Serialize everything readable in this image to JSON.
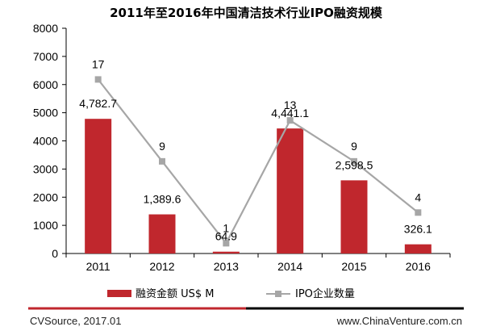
{
  "chart_data": {
    "type": "bar",
    "title": "2011年至2016年中国清洁技术行业IPO融资规模",
    "categories": [
      "2011",
      "2012",
      "2013",
      "2014",
      "2015",
      "2016"
    ],
    "ylim": [
      0,
      8000
    ],
    "yticks": [
      "0",
      "1000",
      "2000",
      "3000",
      "4000",
      "5000",
      "6000",
      "7000",
      "8000"
    ],
    "grid": false,
    "legend_position": "bottom",
    "series": [
      {
        "name": "融资金额 US$ M",
        "type": "bar",
        "color": "#c0272d",
        "values": [
          4782.7,
          1389.6,
          64.9,
          4441.1,
          2598.5,
          326.1
        ],
        "labels": [
          "4,782.7",
          "1,389.6",
          "64.9",
          "4,441.1",
          "2,598.5",
          "326.1"
        ]
      },
      {
        "name": "IPO企业数量",
        "type": "line",
        "color": "#a6a6a6",
        "values": [
          17,
          9,
          1,
          13,
          9,
          4
        ],
        "labels": [
          "17",
          "9",
          "1",
          "13",
          "9",
          "4"
        ]
      }
    ]
  },
  "footer": {
    "source": "CVSource, 2017.01",
    "website": "www.ChinaVenture.com.cn"
  },
  "colors": {
    "footer_line_left": "#c0272d",
    "footer_line_right": "#000000"
  }
}
